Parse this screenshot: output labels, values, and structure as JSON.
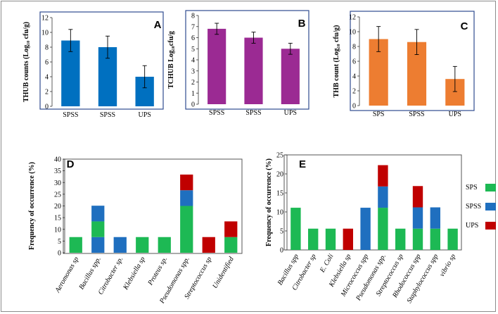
{
  "chart_data": [
    {
      "id": "A",
      "type": "bar",
      "panel_label": "A",
      "ylabel": "THUB counts (Log₁₀ cfu/g)",
      "ylim": [
        0,
        12
      ],
      "yticks": [
        "0",
        "2",
        "4",
        "6",
        "8",
        "10",
        "12"
      ],
      "categories": [
        "SPSS",
        "SPSS",
        "UPS"
      ],
      "values": [
        8.9,
        8.0,
        4.0
      ],
      "errors": [
        1.5,
        1.5,
        1.5
      ],
      "color": "#0070c0",
      "border_color": "#2f4b8f"
    },
    {
      "id": "B",
      "type": "bar",
      "panel_label": "B",
      "ylabel": "TCHUB Log₁₀cfu/g",
      "ylim": [
        0,
        8
      ],
      "yticks": [
        "0",
        "1",
        "2",
        "3",
        "4",
        "5",
        "6",
        "7",
        "8"
      ],
      "categories": [
        "SPSS",
        "SPSS",
        "UPS"
      ],
      "values": [
        6.8,
        6.0,
        5.0
      ],
      "errors": [
        0.5,
        0.5,
        0.5
      ],
      "color": "#9b2a93",
      "border_color": "#2f4b8f"
    },
    {
      "id": "C",
      "type": "bar",
      "panel_label": "C",
      "ylabel": "THB count (Log₁₀ cfu/g)",
      "ylim": [
        0,
        12
      ],
      "yticks": [
        "0",
        "2",
        "4",
        "6",
        "8",
        "10",
        "12"
      ],
      "categories": [
        "SPS",
        "SPSS",
        "UPS"
      ],
      "values": [
        9.0,
        8.6,
        3.6
      ],
      "errors": [
        1.7,
        1.7,
        1.7
      ],
      "color": "#ed7d31",
      "border_color": "#2f4b8f"
    },
    {
      "id": "D",
      "type": "bar",
      "stacked": true,
      "panel_label": "D",
      "ylabel": "Frequency of occurrence (%)",
      "ylim": [
        0,
        40
      ],
      "yticks": [
        "0",
        "5",
        "10",
        "15",
        "20",
        "25",
        "30",
        "35",
        "40"
      ],
      "categories": [
        "Aeromonas sp",
        "Bacillus spp.",
        "Citrobacter sp.",
        "Klebsiella sp",
        "Proteus sp.",
        "Pseudomonas spp.",
        "Streptococcus sp",
        "Unidentified"
      ],
      "series": [
        {
          "name": "SPS",
          "color": "#1db954",
          "values": [
            6.7,
            6.7,
            0,
            6.7,
            6.7,
            20.0,
            0,
            6.7
          ]
        },
        {
          "name": "SPSS",
          "color": "#1f6fbf",
          "values": [
            0,
            6.7,
            6.7,
            0,
            0,
            6.7,
            0,
            0
          ]
        },
        {
          "name": "UPS",
          "color": "#c00000",
          "values": [
            0,
            0,
            0,
            0,
            0,
            6.7,
            6.7,
            6.7
          ]
        }
      ],
      "extra_segments": [
        {
          "category_index": 1,
          "series": "SPSS",
          "value": 6.7
        }
      ]
    },
    {
      "id": "E",
      "type": "bar",
      "stacked": true,
      "panel_label": "E",
      "ylabel": "Frequency of occurrence (%)",
      "ylim": [
        0,
        25
      ],
      "yticks": [
        "0",
        "5",
        "10",
        "15",
        "20",
        "25"
      ],
      "categories": [
        "Bacillus spp",
        "Citrobacter sp",
        "E. Coli",
        "Klebsiella sp",
        "Micrococcus spp",
        "Pseudomonas spp.",
        "Streptococcus sp",
        "Rhodococcus spp",
        "Staphylococcus spp",
        "vibrio sp"
      ],
      "series": [
        {
          "name": "SPS",
          "color": "#1db954",
          "values": [
            11.1,
            5.6,
            5.6,
            0,
            0,
            11.1,
            5.6,
            5.6,
            5.6,
            5.6
          ]
        },
        {
          "name": "SPSS",
          "color": "#1f6fbf",
          "values": [
            0,
            0,
            0,
            0,
            11.1,
            5.6,
            0,
            5.6,
            5.6,
            0
          ]
        },
        {
          "name": "UPS",
          "color": "#c00000",
          "values": [
            0,
            0,
            0,
            5.6,
            0,
            5.6,
            0,
            5.6,
            0,
            0
          ]
        }
      ],
      "legend": [
        "SPS",
        "SPSS",
        "UPS"
      ],
      "legend_position": "right"
    }
  ]
}
